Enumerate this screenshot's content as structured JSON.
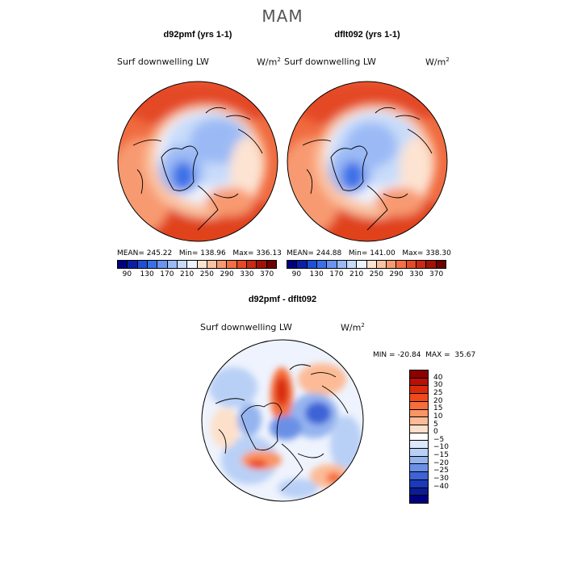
{
  "figure": {
    "season": "MAM",
    "var_label": "Surf downwelling LW",
    "unit_base": "W/m",
    "unit_exp": "2"
  },
  "panels": [
    {
      "title": "d92pmf (yrs 1-1)",
      "mean": "245.22",
      "min": "138.96",
      "max": "336.13"
    },
    {
      "title": "dflt092 (yrs 1-1)",
      "mean": "244.88",
      "min": "141.00",
      "max": "338.30"
    }
  ],
  "abs_colorbar": {
    "colors": [
      "#00007f",
      "#0a1fa6",
      "#1f4fd6",
      "#3b6fe6",
      "#6a94ef",
      "#9bbaf5",
      "#c8dbfa",
      "#eef3fd",
      "#fde3d2",
      "#fbc3a1",
      "#f89a71",
      "#f26f47",
      "#e44a25",
      "#c92a12",
      "#9e1208",
      "#6e0000"
    ],
    "ticks": [
      "90",
      "130",
      "170",
      "210",
      "250",
      "290",
      "330",
      "370"
    ]
  },
  "diff_panel": {
    "title": "d92pmf - dflt092",
    "min_label": "MIN =",
    "min": "-20.84",
    "max_label": "MAX =",
    "max": "35.67"
  },
  "diff_colorbar": {
    "colors": [
      "#8b0000",
      "#b81006",
      "#d92a0c",
      "#ee4a1c",
      "#f66e3a",
      "#fa9566",
      "#fcbb96",
      "#fde0cb",
      "#ffffff",
      "#dce8fb",
      "#b9d0f6",
      "#94b4ef",
      "#6b90e6",
      "#3e63d6",
      "#1b39b8",
      "#0a1d94",
      "#00007f"
    ],
    "ticks": [
      "40",
      "30",
      "25",
      "20",
      "15",
      "10",
      "5",
      "0",
      "−5",
      "−10",
      "−15",
      "−20",
      "−25",
      "−30",
      "−40"
    ]
  }
}
